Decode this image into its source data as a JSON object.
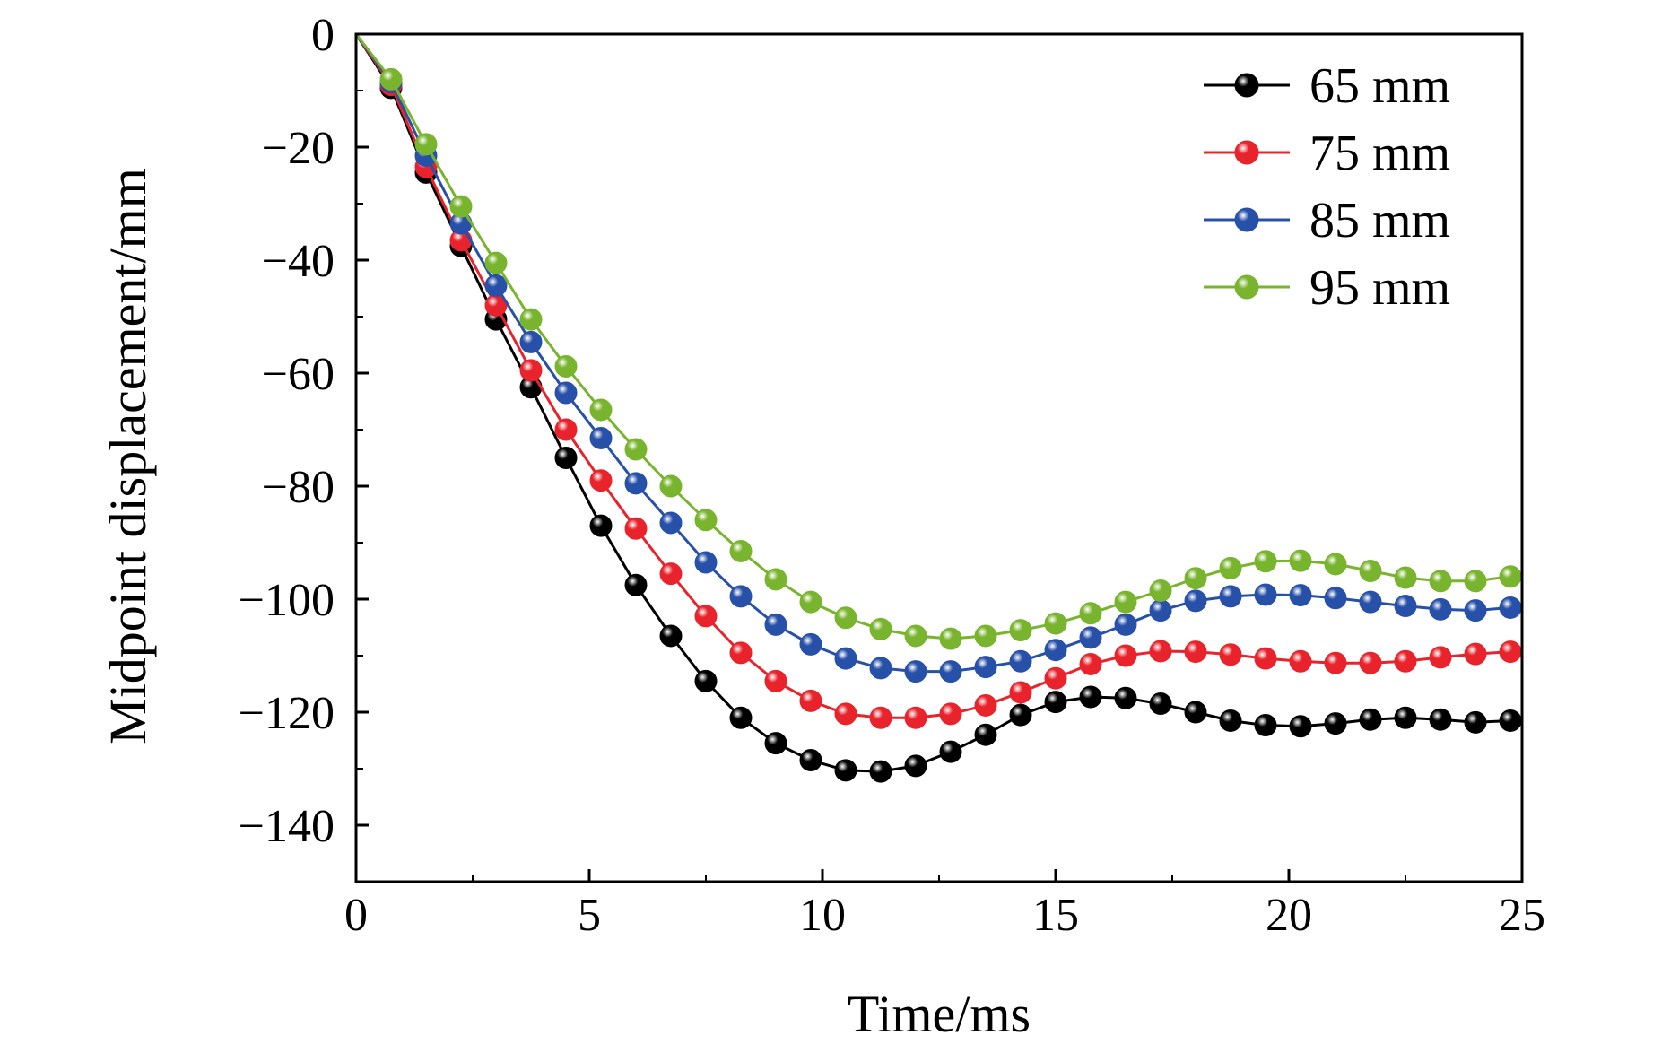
{
  "chart_data": {
    "type": "line",
    "title": "",
    "xlabel": "Time/ms",
    "ylabel": "Midpoint displacement/mm",
    "xlim": [
      0,
      25
    ],
    "ylim": [
      -150,
      0
    ],
    "xticks": [
      "0",
      "5",
      "10",
      "15",
      "20",
      "25"
    ],
    "yticks": [
      "0",
      "−20",
      "−40",
      "−60",
      "−80",
      "−100",
      "−120",
      "−140"
    ],
    "grid": false,
    "legend_position": "top-right",
    "x": [
      0,
      0.75,
      1.5,
      2.25,
      3.0,
      3.75,
      4.5,
      5.25,
      6.0,
      6.75,
      7.5,
      8.25,
      9.0,
      9.75,
      10.5,
      11.25,
      12.0,
      12.75,
      13.5,
      14.25,
      15.0,
      15.75,
      16.5,
      17.25,
      18.0,
      18.75,
      19.5,
      20.25,
      21.0,
      21.75,
      22.5,
      23.25,
      24.0,
      24.75
    ],
    "series": [
      {
        "name": "65 mm",
        "color": "#000000",
        "values": [
          0,
          -9.5,
          -24.5,
          -37.5,
          -50.5,
          -62.5,
          -75,
          -87,
          -97.5,
          -106.5,
          -114.5,
          -121,
          -125.5,
          -128.5,
          -130.3,
          -130.5,
          -129.5,
          -127,
          -124,
          -120.5,
          -118.2,
          -117.3,
          -117.5,
          -118.5,
          -120,
          -121.5,
          -122.3,
          -122.5,
          -122,
          -121.3,
          -121,
          -121.3,
          -121.8,
          -121.5
        ]
      },
      {
        "name": "75 mm",
        "color": "#e8232b",
        "values": [
          0,
          -9,
          -23.5,
          -36.5,
          -48,
          -59.5,
          -70,
          -79,
          -87.5,
          -95.5,
          -103,
          -109.5,
          -114.5,
          -118,
          -120.3,
          -121,
          -121,
          -120.3,
          -118.8,
          -116.5,
          -114,
          -111.5,
          -110,
          -109.2,
          -109.3,
          -109.8,
          -110.5,
          -111,
          -111.3,
          -111.3,
          -111,
          -110.3,
          -109.7,
          -109.3
        ]
      },
      {
        "name": "85 mm",
        "color": "#2750a8",
        "values": [
          0,
          -8.5,
          -21.5,
          -33.5,
          -44.5,
          -54.5,
          -63.5,
          -71.5,
          -79.5,
          -86.5,
          -93.5,
          -99.5,
          -104.5,
          -108,
          -110.5,
          -112.2,
          -112.8,
          -112.8,
          -112,
          -111,
          -109,
          -106.8,
          -104.5,
          -102,
          -100.3,
          -99.5,
          -99.2,
          -99.3,
          -99.8,
          -100.5,
          -101.2,
          -101.8,
          -102,
          -101.5
        ]
      },
      {
        "name": "95 mm",
        "color": "#79b42e",
        "values": [
          0,
          -8,
          -19.5,
          -30.5,
          -40.5,
          -50.5,
          -58.8,
          -66.5,
          -73.5,
          -80,
          -86,
          -91.5,
          -96.5,
          -100.5,
          -103.3,
          -105.3,
          -106.5,
          -107,
          -106.5,
          -105.5,
          -104.3,
          -102.5,
          -100.5,
          -98.5,
          -96.3,
          -94.5,
          -93.3,
          -93.2,
          -93.8,
          -95,
          -96.2,
          -96.8,
          -96.8,
          -96
        ]
      }
    ]
  }
}
